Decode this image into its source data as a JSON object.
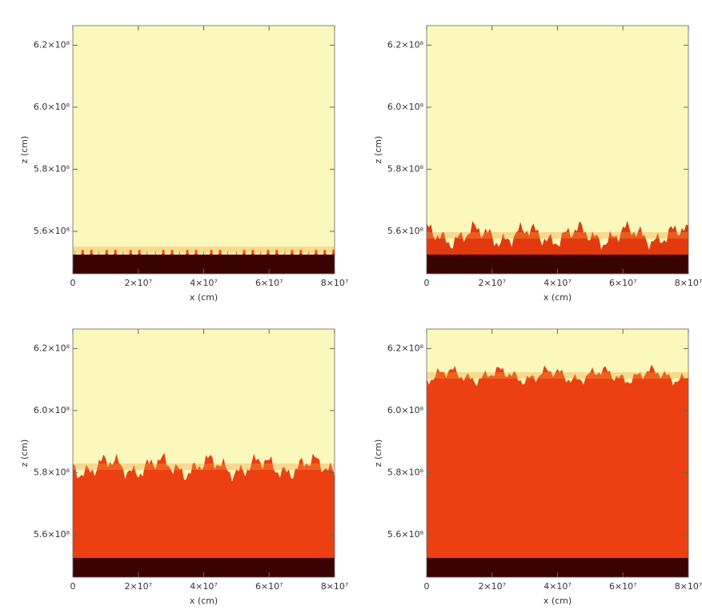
{
  "chart_data": [
    {
      "type": "image",
      "xlabel": "x (cm)",
      "ylabel": "z (cm)",
      "xlim": [
        0,
        80000000
      ],
      "ylim": [
        546300000,
        626300000
      ],
      "xticks": [
        0,
        {
          "value": 20000000,
          "label": "2×10⁷"
        },
        {
          "value": 40000000,
          "label": "4×10⁷"
        },
        {
          "value": 60000000,
          "label": "6×10⁷"
        },
        {
          "value": 80000000,
          "label": "8×10⁷"
        }
      ],
      "yticks": [
        {
          "value": 560000000,
          "label": "5.6×10⁸"
        },
        {
          "value": 580000000,
          "label": "5.8×10⁸"
        },
        {
          "value": 600000000,
          "label": "6.0×10⁸"
        },
        {
          "value": 620000000,
          "label": "6.2×10⁸"
        }
      ]
    },
    {
      "type": "image",
      "xlabel": "x (cm)",
      "ylabel": "z (cm)",
      "xlim": [
        0,
        80000000
      ],
      "ylim": [
        546300000,
        626300000
      ],
      "xticks": [
        0,
        {
          "value": 20000000,
          "label": "2×10⁷"
        },
        {
          "value": 40000000,
          "label": "4×10⁷"
        },
        {
          "value": 60000000,
          "label": "6×10⁷"
        },
        {
          "value": 80000000,
          "label": "8×10⁷"
        }
      ],
      "yticks": [
        {
          "value": 560000000,
          "label": "5.6×10⁸"
        },
        {
          "value": 580000000,
          "label": "5.8×10⁸"
        },
        {
          "value": 600000000,
          "label": "6.0×10⁸"
        },
        {
          "value": 620000000,
          "label": "6.2×10⁸"
        }
      ]
    },
    {
      "type": "image",
      "xlabel": "x (cm)",
      "ylabel": "z (cm)",
      "xlim": [
        0,
        80000000
      ],
      "ylim": [
        546300000,
        626300000
      ],
      "xticks": [
        0,
        {
          "value": 20000000,
          "label": "2×10⁷"
        },
        {
          "value": 40000000,
          "label": "4×10⁷"
        },
        {
          "value": 60000000,
          "label": "6×10⁷"
        },
        {
          "value": 80000000,
          "label": "8×10⁷"
        }
      ],
      "yticks": [
        {
          "value": 560000000,
          "label": "5.6×10⁸"
        },
        {
          "value": 580000000,
          "label": "5.8×10⁸"
        },
        {
          "value": 600000000,
          "label": "6.0×10⁸"
        },
        {
          "value": 620000000,
          "label": "6.2×10⁸"
        }
      ]
    },
    {
      "type": "image",
      "xlabel": "x (cm)",
      "ylabel": "z (cm)",
      "xlim": [
        0,
        80000000
      ],
      "ylim": [
        546300000,
        626300000
      ],
      "xticks": [
        0,
        {
          "value": 20000000,
          "label": "2×10⁷"
        },
        {
          "value": 40000000,
          "label": "4×10⁷"
        },
        {
          "value": 60000000,
          "label": "6×10⁷"
        },
        {
          "value": 80000000,
          "label": "8×10⁷"
        }
      ],
      "yticks": [
        {
          "value": 560000000,
          "label": "5.6×10⁸"
        },
        {
          "value": 580000000,
          "label": "5.8×10⁸"
        },
        {
          "value": 600000000,
          "label": "6.0×10⁸"
        },
        {
          "value": 620000000,
          "label": "6.2×10⁸"
        }
      ]
    }
  ]
}
